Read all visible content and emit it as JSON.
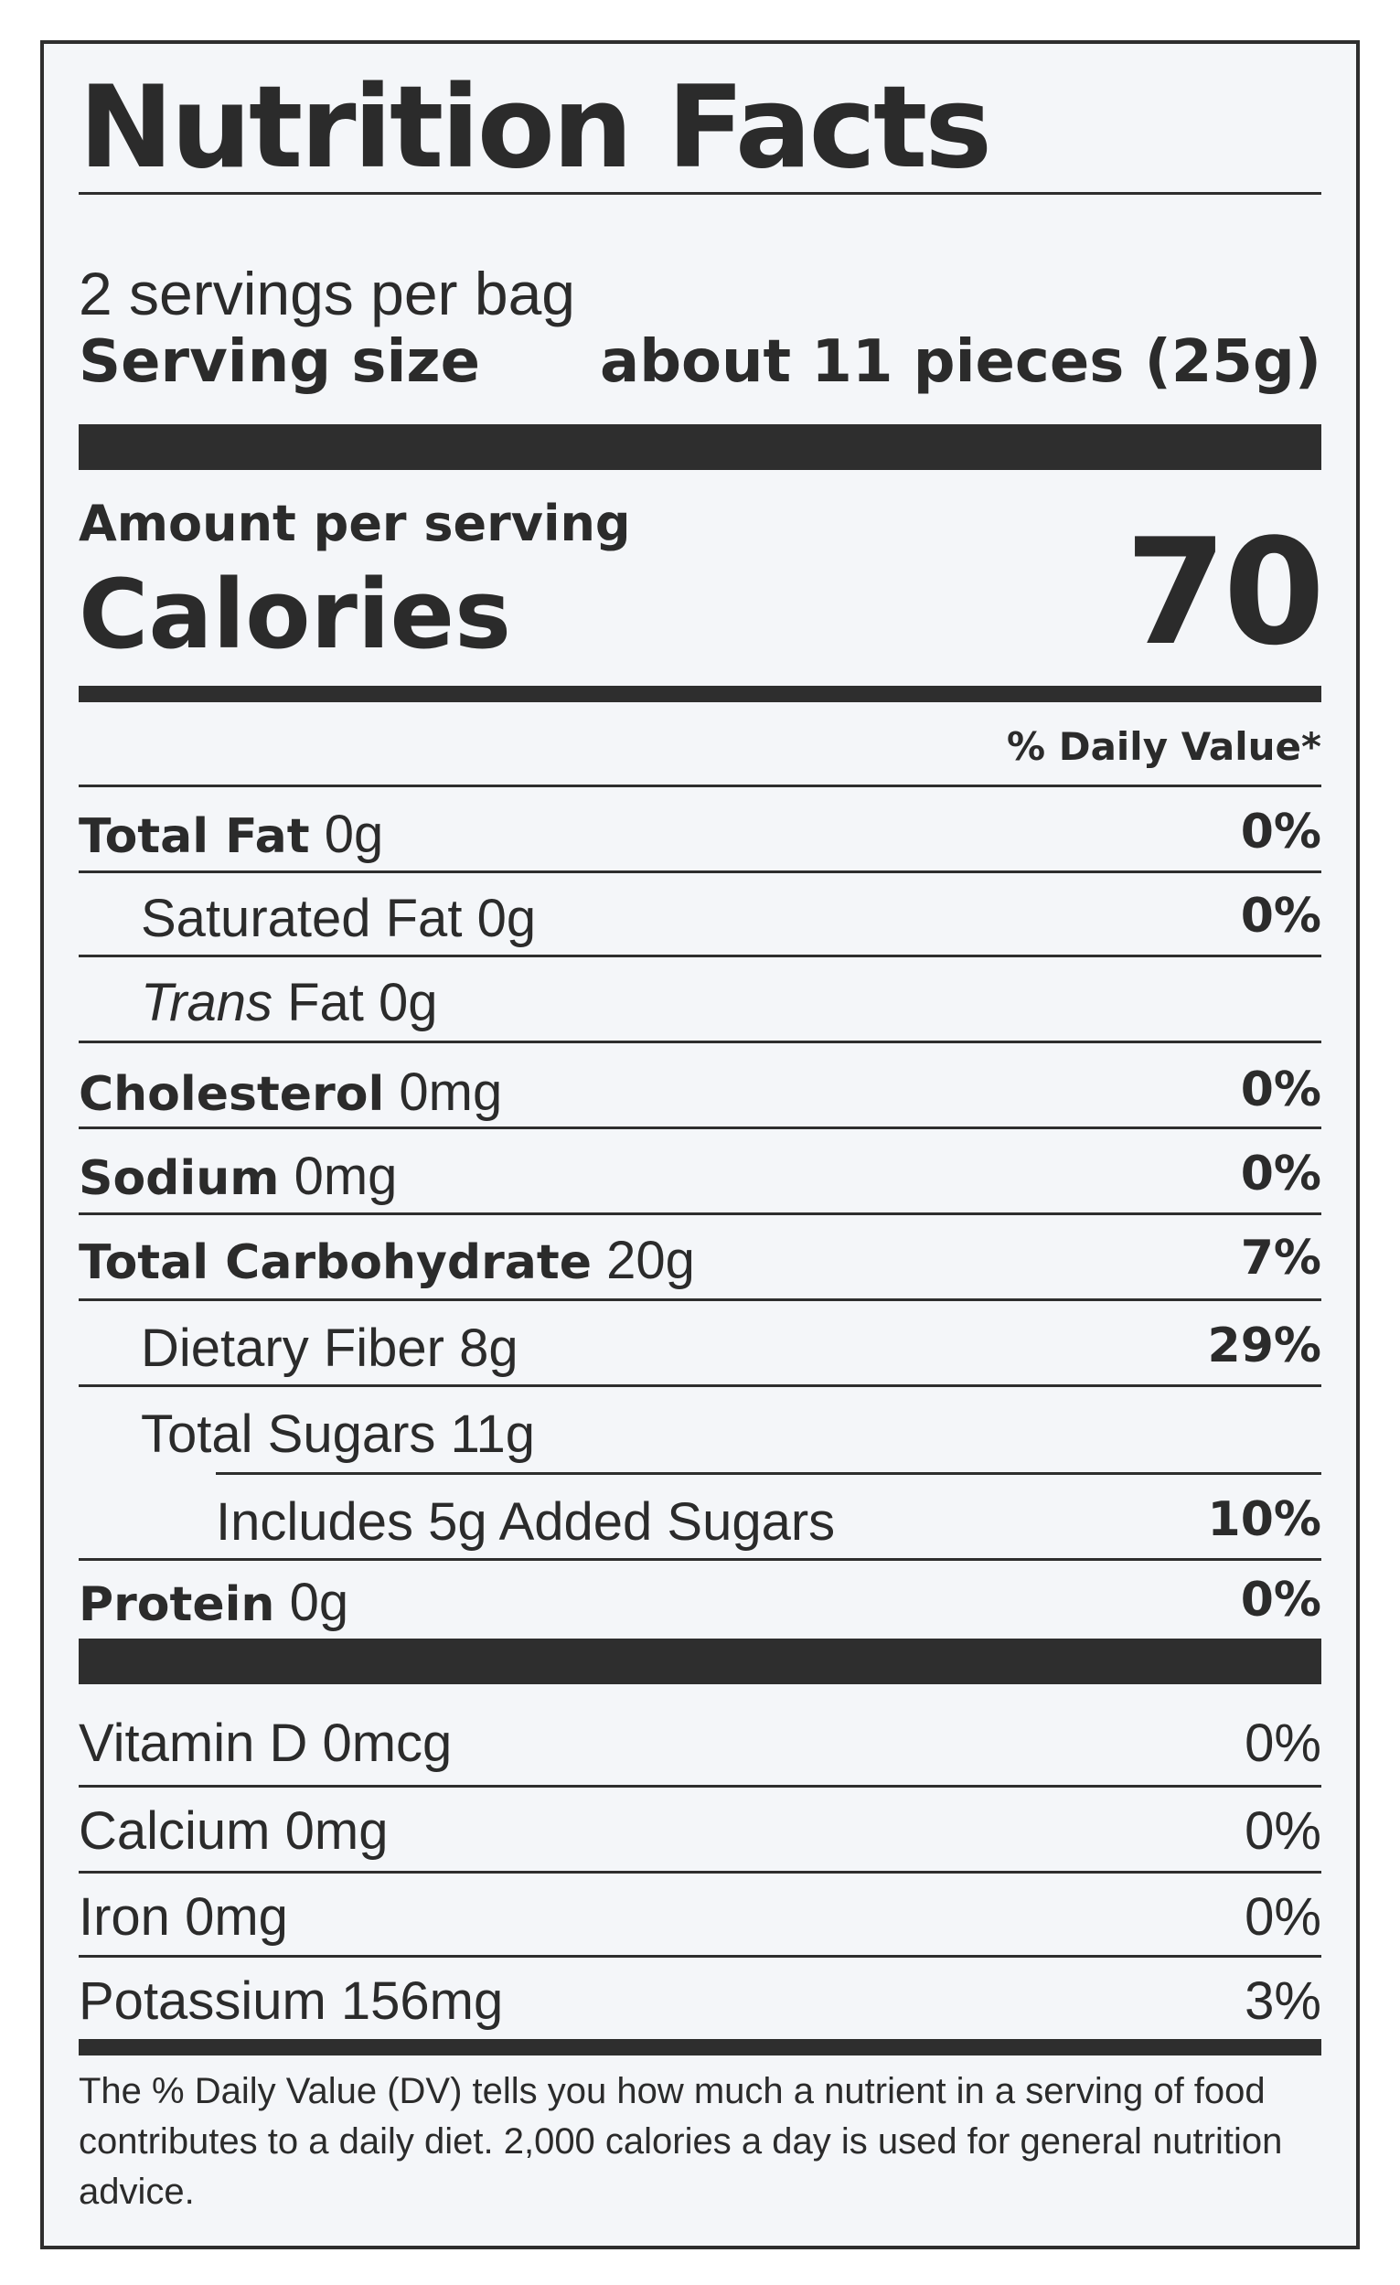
{
  "title": "Nutrition Facts",
  "servings_per_container": "2 servings per bag",
  "serving_size": {
    "label": "Serving size",
    "value": "about 11 pieces (25g)"
  },
  "amount_per_serving": "Amount per serving",
  "calories": {
    "label": "Calories",
    "value": "70"
  },
  "daily_value_header": "% Daily Value*",
  "nutrients": [
    {
      "name": "Total Fat",
      "amount": "0g",
      "dv": "0%"
    },
    {
      "name": "Saturated Fat",
      "amount": "0g",
      "dv": "0%"
    },
    {
      "name_italic": "Trans",
      "name": "Fat",
      "amount": "0g",
      "dv": ""
    },
    {
      "name": "Cholesterol",
      "amount": "0mg",
      "dv": "0%"
    },
    {
      "name": "Sodium",
      "amount": "0mg",
      "dv": "0%"
    },
    {
      "name": "Total Carbohydrate",
      "amount": "20g",
      "dv": "7%"
    },
    {
      "name": "Dietary Fiber",
      "amount": "8g",
      "dv": "29%"
    },
    {
      "name": "Total Sugars",
      "amount": "11g",
      "dv": ""
    },
    {
      "name": "Includes 5g Added Sugars",
      "amount": "",
      "dv": "10%"
    },
    {
      "name": "Protein",
      "amount": "0g",
      "dv": "0%"
    }
  ],
  "micronutrients": [
    {
      "name": "Vitamin D",
      "amount": "0mcg",
      "dv": "0%"
    },
    {
      "name": "Calcium",
      "amount": "0mg",
      "dv": "0%"
    },
    {
      "name": "Iron",
      "amount": "0mg",
      "dv": "0%"
    },
    {
      "name": "Potassium",
      "amount": "156mg",
      "dv": "3%"
    }
  ],
  "footnote": "The % Daily Value (DV) tells you how much a nutrient in a serving of food contributes to a daily diet. 2,000 calories a day is used for general nutrition advice."
}
